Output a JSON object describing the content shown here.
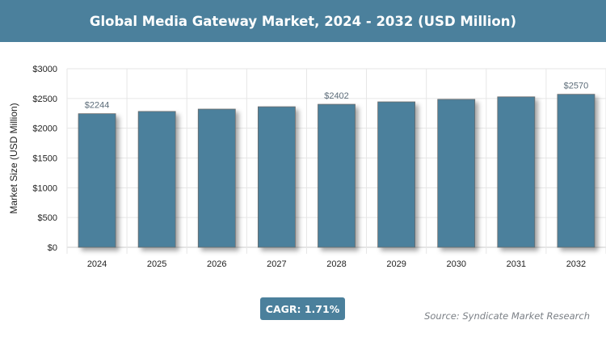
{
  "title": "Global Media Gateway Market, 2024 - 2032 (USD Million)",
  "cagr": "CAGR: 1.71%",
  "source": "Source: Syndicate Market Research",
  "colors": {
    "bar": "#4b809c",
    "header": "#4b809c"
  },
  "chart_data": {
    "type": "bar",
    "categories": [
      "2024",
      "2025",
      "2026",
      "2027",
      "2028",
      "2029",
      "2030",
      "2031",
      "2032"
    ],
    "values": [
      2244,
      2282,
      2321,
      2361,
      2402,
      2443,
      2485,
      2527,
      2570
    ],
    "data_labels": {
      "2024": "$2244",
      "2028": "$2402",
      "2032": "$2570"
    },
    "ylabel": "Market Size (USD Million)",
    "xlabel": "",
    "ylim": [
      0,
      3000
    ],
    "yticks": [
      "$0",
      "$500",
      "$1000",
      "$1500",
      "$2000",
      "$2500",
      "$3000"
    ],
    "grid": true
  }
}
